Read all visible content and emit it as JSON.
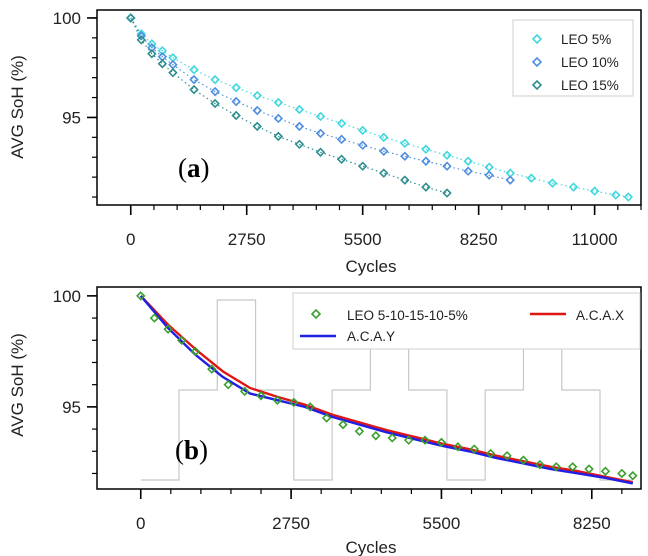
{
  "chart_data": [
    {
      "type": "scatter",
      "panel_label": "(a)",
      "xlabel": "Cycles",
      "ylabel": "AVG SoH (%)",
      "xlim": [
        -800,
        12100
      ],
      "ylim": [
        90.6,
        100.4
      ],
      "xticks": [
        0,
        2750,
        5500,
        8250,
        11000
      ],
      "yticks": [
        95,
        100
      ],
      "legend_position": "top-right",
      "series": [
        {
          "name": "LEO 5%",
          "color": "#41d7de",
          "x": [
            0,
            250,
            500,
            750,
            1000,
            1500,
            2000,
            2500,
            3000,
            3500,
            4000,
            4500,
            5000,
            5500,
            6000,
            6500,
            7000,
            7500,
            8000,
            8500,
            9000,
            9500,
            10000,
            10500,
            11000,
            11500,
            11800
          ],
          "y": [
            100,
            99.2,
            98.7,
            98.35,
            98.0,
            97.4,
            96.9,
            96.5,
            96.1,
            95.75,
            95.4,
            95.05,
            94.7,
            94.35,
            94.0,
            93.7,
            93.4,
            93.1,
            92.8,
            92.5,
            92.2,
            91.95,
            91.7,
            91.5,
            91.3,
            91.1,
            91.0
          ]
        },
        {
          "name": "LEO 10%",
          "color": "#4f8fe0",
          "x": [
            0,
            250,
            500,
            750,
            1000,
            1500,
            2000,
            2500,
            3000,
            3500,
            4000,
            4500,
            5000,
            5500,
            6000,
            6500,
            7000,
            7500,
            8000,
            8500,
            9000
          ],
          "y": [
            100,
            99.1,
            98.5,
            98.05,
            97.65,
            96.9,
            96.3,
            95.8,
            95.35,
            94.95,
            94.55,
            94.2,
            93.9,
            93.6,
            93.3,
            93.05,
            92.8,
            92.55,
            92.3,
            92.1,
            91.85
          ]
        },
        {
          "name": "LEO 15%",
          "color": "#2f8f8f",
          "x": [
            0,
            250,
            500,
            750,
            1000,
            1500,
            2000,
            2500,
            3000,
            3500,
            4000,
            4500,
            5000,
            5500,
            6000,
            6500,
            7000,
            7500
          ],
          "y": [
            100,
            98.9,
            98.2,
            97.7,
            97.25,
            96.4,
            95.7,
            95.1,
            94.55,
            94.05,
            93.65,
            93.25,
            92.9,
            92.55,
            92.2,
            91.85,
            91.5,
            91.2
          ]
        }
      ]
    },
    {
      "type": "line",
      "panel_label": "(b)",
      "xlabel": "Cycles",
      "ylabel": "AVG SoH (%)",
      "xlim": [
        -800,
        9150
      ],
      "ylim": [
        91.3,
        100.4
      ],
      "xticks": [
        0,
        2750,
        5500,
        8250
      ],
      "yticks": [
        95,
        100
      ],
      "legend_position": "top-right",
      "background_profile": {
        "color": "#c8c8c8",
        "x": [
          0,
          700,
          700,
          1400,
          1400,
          2100,
          2100,
          2800,
          2800,
          3500,
          3500,
          4200,
          4200,
          4900,
          4900,
          5600,
          5600,
          6300,
          6300,
          7000,
          7000,
          7700,
          7700,
          8400,
          8400,
          9000
        ],
        "level": [
          0,
          0,
          0.5,
          0.5,
          1,
          1,
          0.5,
          0.5,
          0,
          0,
          0.5,
          0.5,
          1,
          1,
          0.5,
          0.5,
          0,
          0,
          0.5,
          0.5,
          1,
          1,
          0.5,
          0.5,
          0,
          0
        ]
      },
      "series": [
        {
          "name": "LEO 5-10-15-10-5%",
          "kind": "scatter",
          "color": "#3aa02c",
          "x": [
            0,
            250,
            500,
            750,
            1000,
            1300,
            1600,
            1900,
            2200,
            2500,
            2800,
            3100,
            3400,
            3700,
            4000,
            4300,
            4600,
            4900,
            5200,
            5500,
            5800,
            6100,
            6400,
            6700,
            7000,
            7300,
            7600,
            7900,
            8200,
            8500,
            8800,
            9000
          ],
          "y": [
            100,
            99.0,
            98.5,
            98.0,
            97.5,
            96.7,
            96.0,
            95.7,
            95.5,
            95.3,
            95.2,
            95.0,
            94.5,
            94.2,
            93.9,
            93.7,
            93.6,
            93.5,
            93.5,
            93.4,
            93.2,
            93.1,
            92.9,
            92.8,
            92.6,
            92.4,
            92.3,
            92.3,
            92.2,
            92.1,
            92.0,
            91.9
          ]
        },
        {
          "name": "A.C.A.X",
          "kind": "line",
          "color": "#e01616",
          "x": [
            0,
            500,
            1000,
            1500,
            2000,
            2500,
            3000,
            3500,
            4000,
            4500,
            5000,
            5500,
            6000,
            6500,
            7000,
            7500,
            8000,
            8500,
            9000
          ],
          "y": [
            100,
            98.7,
            97.6,
            96.6,
            95.85,
            95.45,
            95.1,
            94.65,
            94.3,
            93.95,
            93.65,
            93.35,
            93.1,
            92.8,
            92.55,
            92.3,
            92.1,
            91.85,
            91.6
          ]
        },
        {
          "name": "A.C.A.Y",
          "kind": "line",
          "color": "#1f1fe6",
          "x": [
            0,
            500,
            1000,
            1500,
            2000,
            2500,
            3000,
            3500,
            4000,
            4500,
            5000,
            5500,
            6000,
            6500,
            7000,
            7500,
            8000,
            8500,
            9000
          ],
          "y": [
            100,
            98.55,
            97.35,
            96.35,
            95.6,
            95.3,
            95.0,
            94.55,
            94.2,
            93.85,
            93.55,
            93.25,
            93.0,
            92.7,
            92.45,
            92.2,
            92.0,
            91.8,
            91.55
          ]
        }
      ]
    }
  ]
}
